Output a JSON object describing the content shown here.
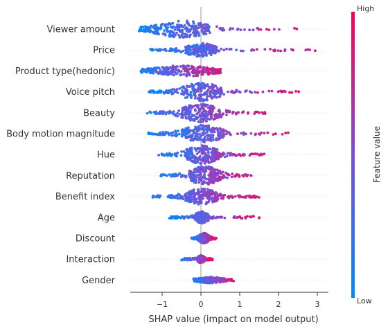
{
  "chart_data": {
    "type": "scatter",
    "subtype": "shap-beeswarm",
    "title": "",
    "xlabel": "SHAP value (impact on model output)",
    "xlim": [
      -1.85,
      3.05
    ],
    "x_ticks": [
      "−1",
      "0",
      "1",
      "2",
      "3"
    ],
    "x_tick_values": [
      -1,
      0,
      1,
      2,
      3
    ],
    "colorbar": {
      "label": "Feature value",
      "high_label": "High",
      "low_label": "Low",
      "low_color": "#008bfb",
      "mid_color": "#7d4fd6",
      "high_color": "#ff0052"
    },
    "features": [
      {
        "name": "Viewer amount",
        "min": -1.6,
        "max": 2.7,
        "core": [
          -1.2,
          0.2
        ],
        "spread": 0.9
      },
      {
        "name": "Price",
        "min": -1.3,
        "max": 3.3,
        "core": [
          -0.4,
          0.4
        ],
        "spread": 0.7
      },
      {
        "name": "Product type(hedonic)",
        "min": -1.55,
        "max": 0.55,
        "core": [
          -1.2,
          0.3
        ],
        "spread": 0.55
      },
      {
        "name": "Voice pitch",
        "min": -1.35,
        "max": 2.7,
        "core": [
          -0.5,
          0.55
        ],
        "spread": 1.0
      },
      {
        "name": "Beauty",
        "min": -1.55,
        "max": 1.75,
        "core": [
          -0.5,
          0.5
        ],
        "spread": 1.0
      },
      {
        "name": "Body motion magnitude",
        "min": -1.35,
        "max": 2.6,
        "core": [
          -0.5,
          0.6
        ],
        "spread": 0.9
      },
      {
        "name": "Hue",
        "min": -1.1,
        "max": 1.65,
        "core": [
          -0.4,
          0.45
        ],
        "spread": 1.0
      },
      {
        "name": "Reputation",
        "min": -1.05,
        "max": 1.3,
        "core": [
          -0.3,
          0.5
        ],
        "spread": 1.0
      },
      {
        "name": "Benefit index",
        "min": -1.3,
        "max": 1.5,
        "core": [
          -0.4,
          0.45
        ],
        "spread": 0.85
      },
      {
        "name": "Age",
        "min": -0.85,
        "max": 1.55,
        "core": [
          -0.15,
          0.2
        ],
        "spread": 0.6
      },
      {
        "name": "Discount",
        "min": -0.25,
        "max": 0.4,
        "core": [
          -0.05,
          0.2
        ],
        "spread": 0.5
      },
      {
        "name": "Interaction",
        "min": -0.5,
        "max": 0.3,
        "core": [
          -0.08,
          0.08
        ],
        "spread": 0.35
      },
      {
        "name": "Gender",
        "min": -0.2,
        "max": 0.85,
        "core": [
          -0.05,
          0.55
        ],
        "spread": 0.25
      }
    ]
  }
}
